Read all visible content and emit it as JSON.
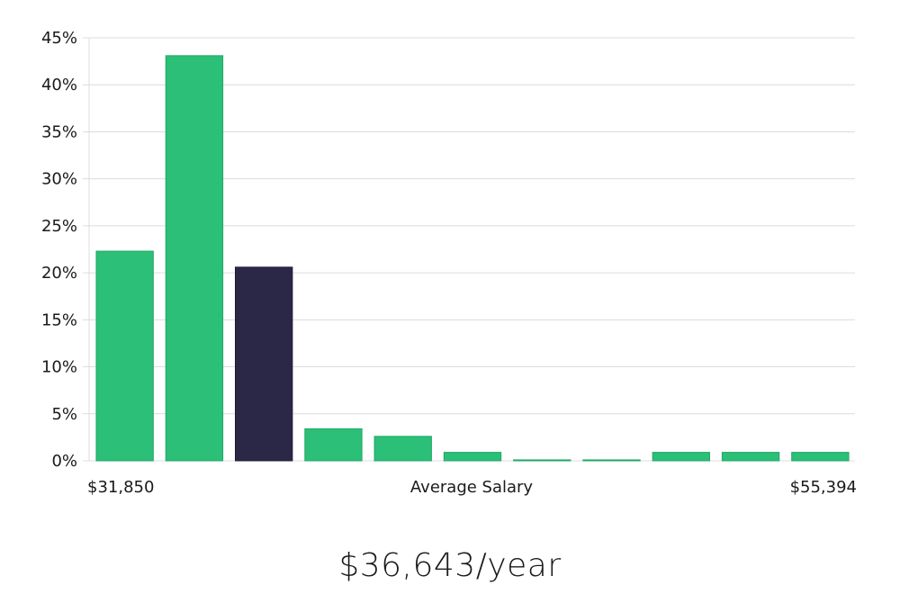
{
  "chart_data": {
    "type": "bar",
    "title": "",
    "xlabel": "Average Salary",
    "ylabel": "",
    "x_min_label": "$31,850",
    "x_max_label": "$55,394",
    "values": [
      22.3,
      43.1,
      20.6,
      3.4,
      2.6,
      0.9,
      0.1,
      0.1,
      0.9,
      0.9,
      0.9
    ],
    "highlight_index": 2,
    "ylim": [
      0,
      45
    ],
    "yticks": [
      0,
      5,
      10,
      15,
      20,
      25,
      30,
      35,
      40,
      45
    ],
    "ytick_suffix": "%",
    "grid": true
  },
  "summary": {
    "salary": "$36,643/year"
  },
  "colors": {
    "bar": "#2bbf77",
    "bar_border": "#22a866",
    "highlight": "#2a2747",
    "grid": "#dcdcdc"
  }
}
